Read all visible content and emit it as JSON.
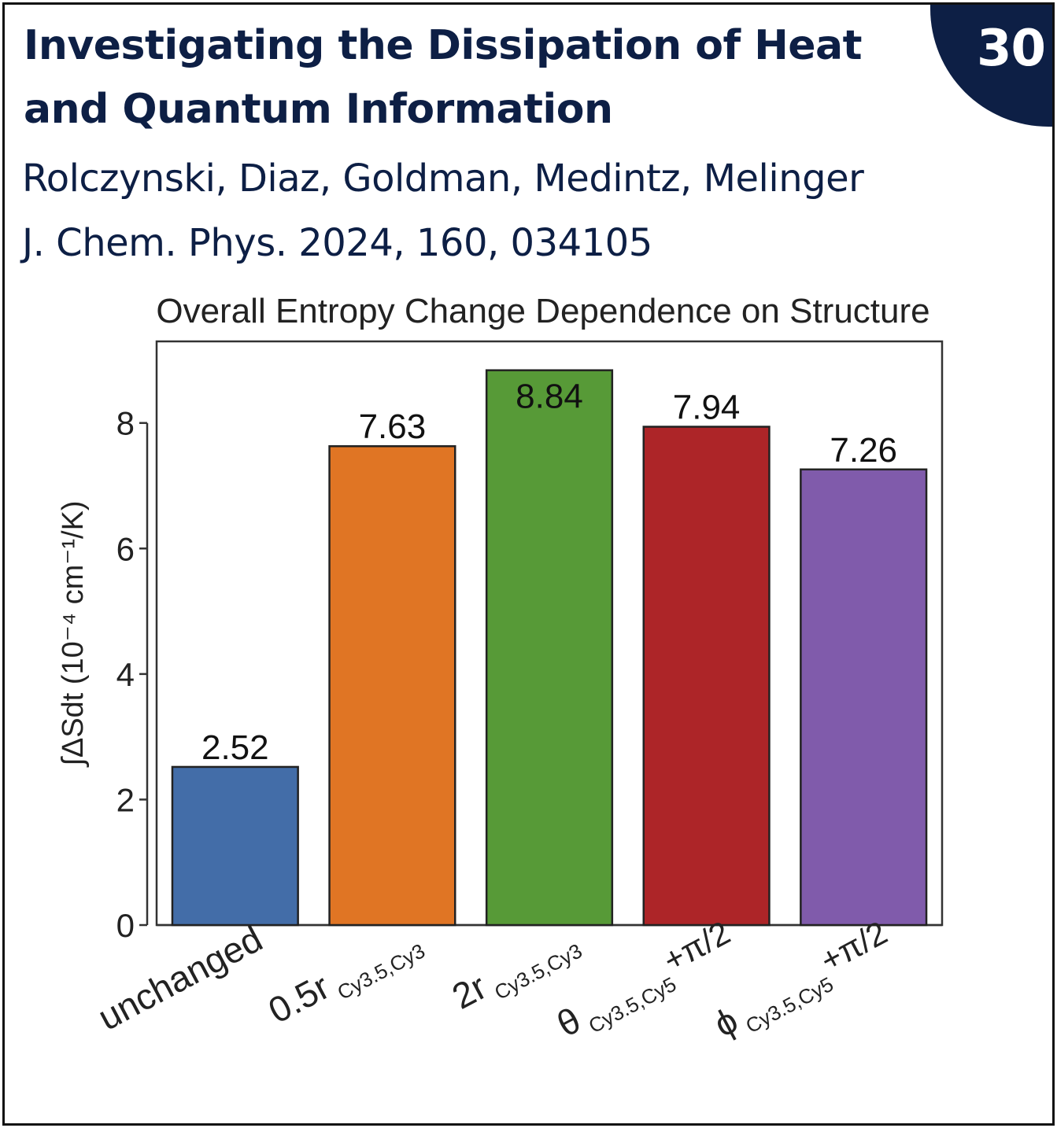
{
  "header": {
    "title_line1": "Investigating the Dissipation of Heat",
    "title_line2": "and Quantum Information",
    "authors": "Rolczynski, Diaz, Goldman, Medintz, Melinger",
    "citation": "J. Chem. Phys. 2024, 160, 034105",
    "badge": "30",
    "badge_color": "#0d1f45"
  },
  "chart_data": {
    "type": "bar",
    "title": "Overall Entropy Change Dependence on Structure",
    "ylabel": "∫ΔSdt (10⁻⁴ cm⁻¹/K)",
    "xlabel": "",
    "ylim": [
      0,
      9.3
    ],
    "yticks": [
      "0",
      "2",
      "4",
      "6",
      "8"
    ],
    "grid": false,
    "categories": [
      {
        "main": "unchanged",
        "sub": "",
        "suffix": ""
      },
      {
        "main": "0.5r",
        "sub": "Cy3.5,Cy3",
        "suffix": ""
      },
      {
        "main": "2r",
        "sub": "Cy3.5,Cy3",
        "suffix": ""
      },
      {
        "main": "θ",
        "sub": "Cy3.5,Cy5",
        "suffix": "+π/2"
      },
      {
        "main": "ϕ",
        "sub": "Cy3.5,Cy5",
        "suffix": "+π/2"
      }
    ],
    "values": [
      2.52,
      7.63,
      8.84,
      7.94,
      7.26
    ],
    "value_labels": [
      "2.52",
      "7.63",
      "8.84",
      "7.94",
      "7.26"
    ],
    "colors": [
      "#436da8",
      "#e07524",
      "#579a37",
      "#ad2528",
      "#805bab"
    ]
  }
}
